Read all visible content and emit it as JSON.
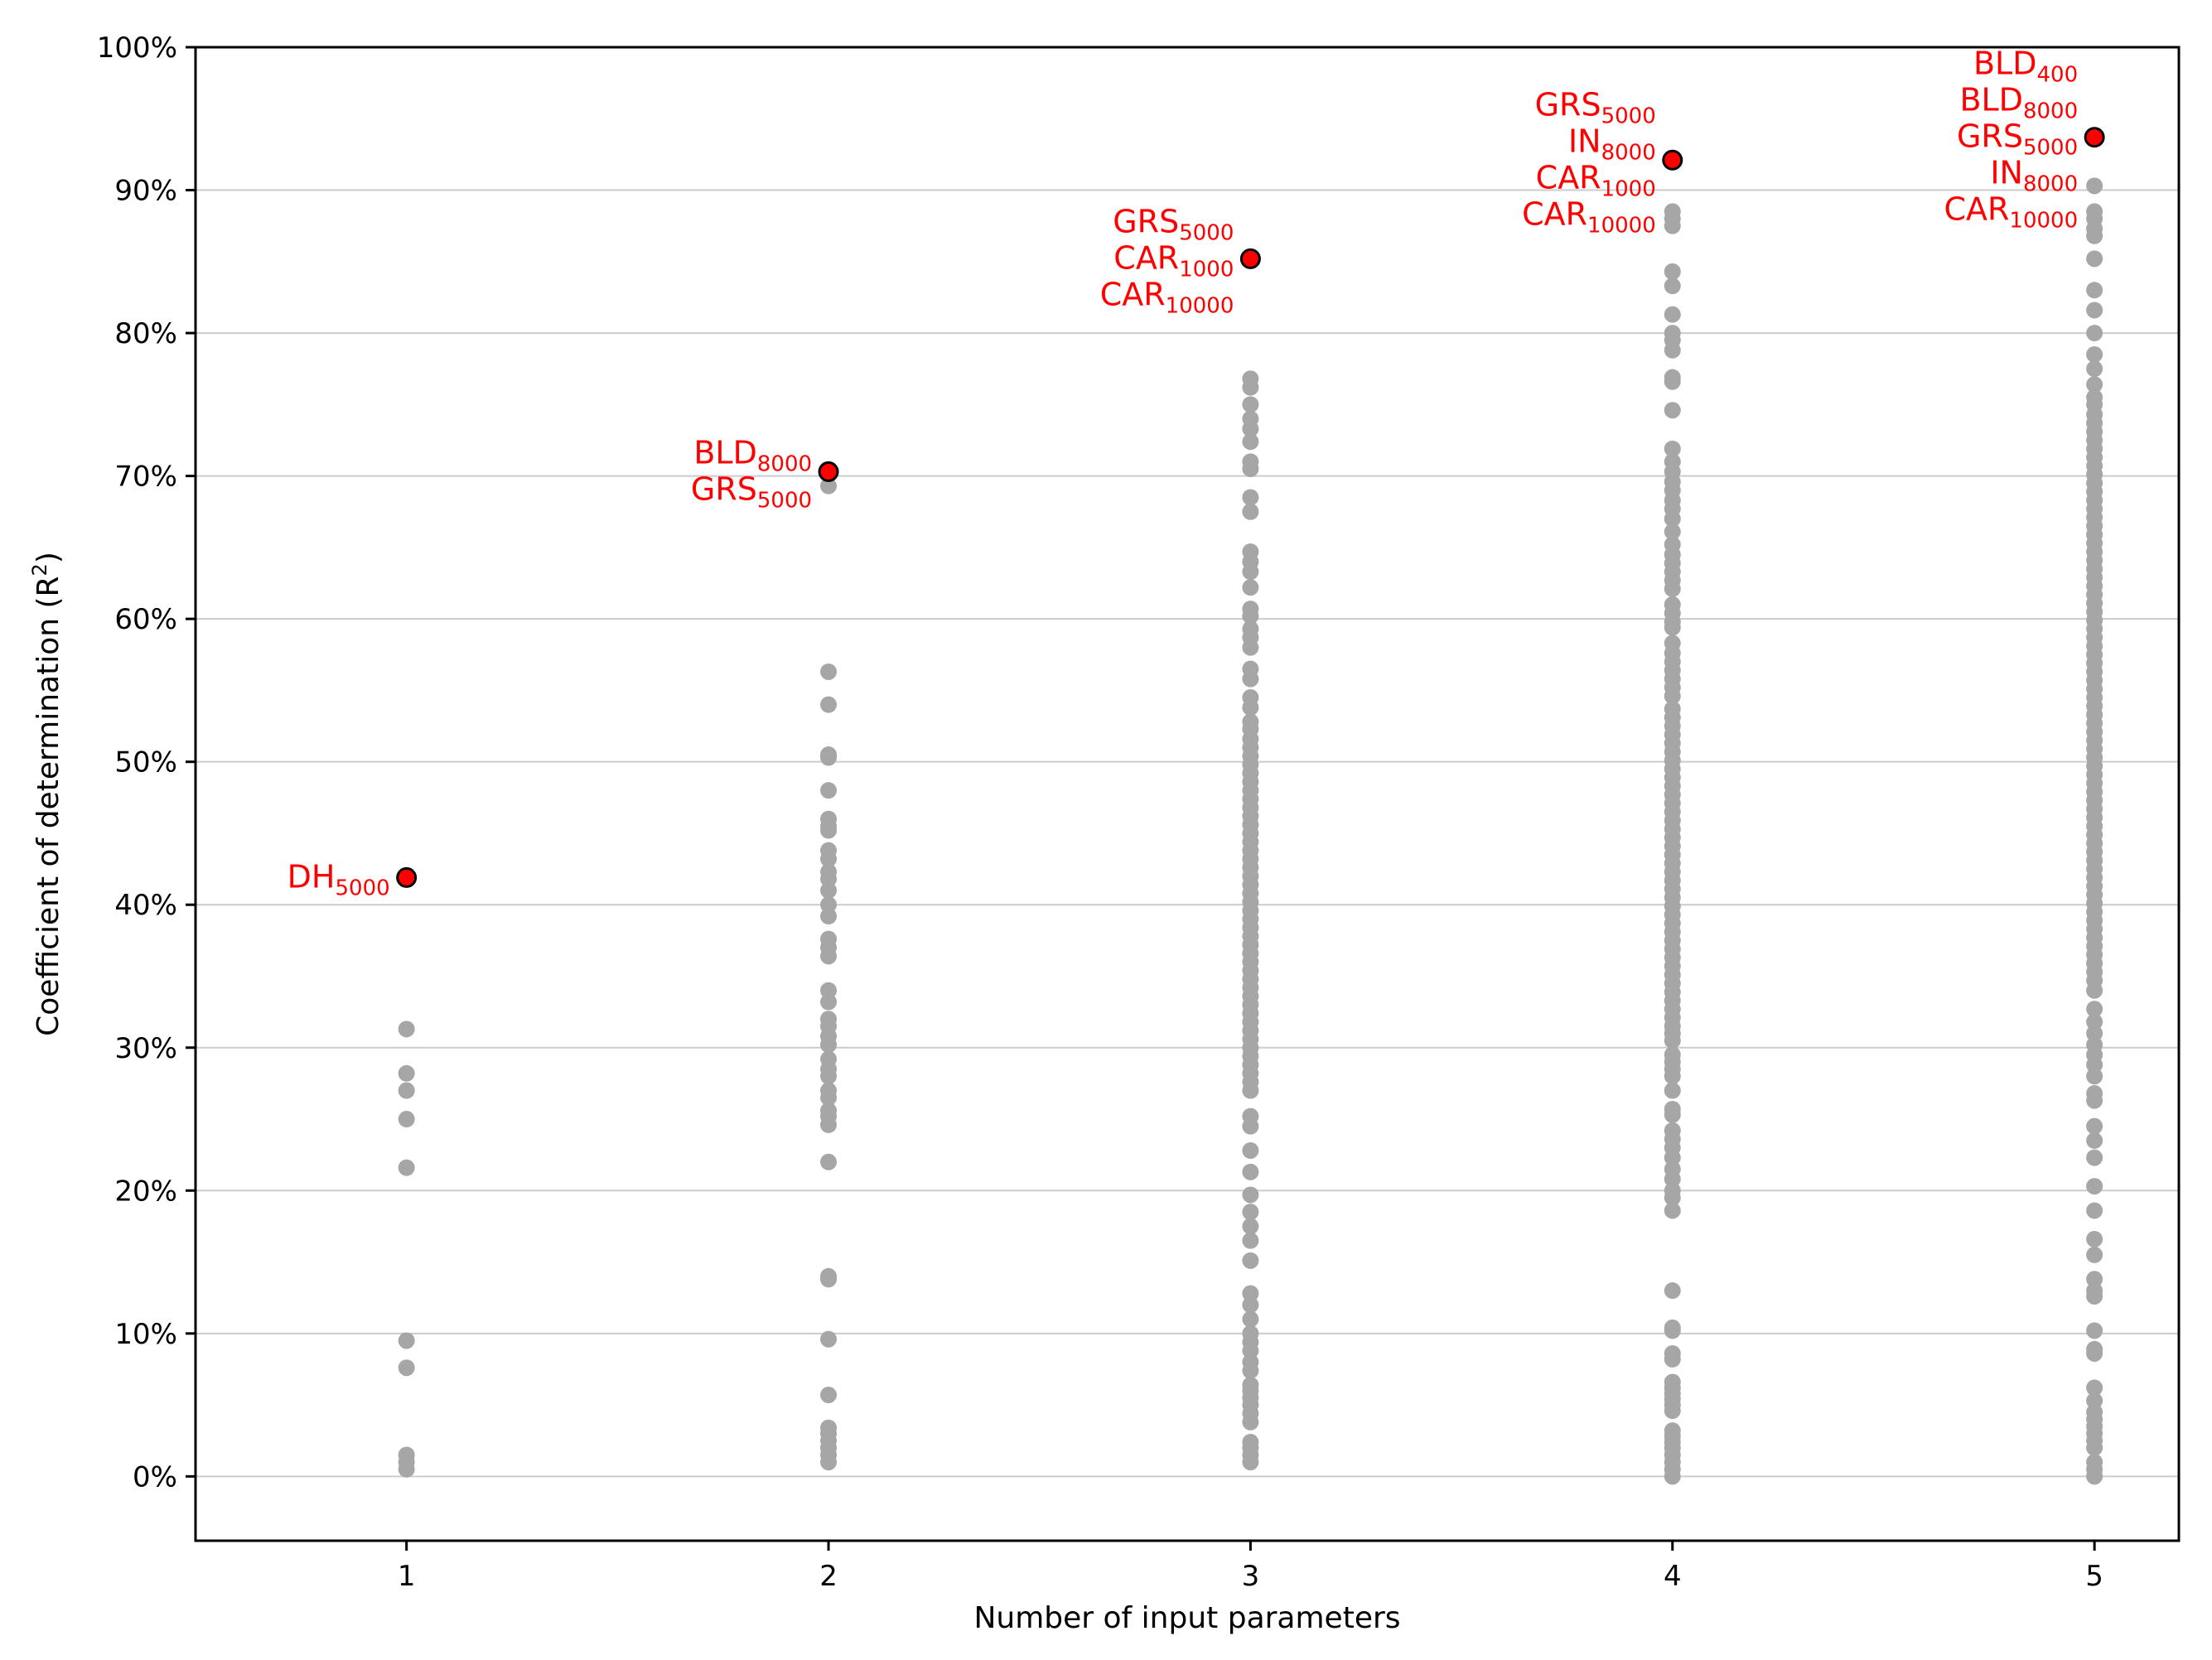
{
  "chart_data": {
    "type": "scatter",
    "xlabel": "Number of input parameters",
    "ylabel": "Coefficient of determination (R",
    "ylabel_sup": "2",
    "ylabel_end": ")",
    "xlim": [
      0.5,
      5.2
    ],
    "ylim": [
      -4.5,
      100
    ],
    "grid": "horizontal",
    "x_ticks": [
      {
        "value": 1,
        "label": "1"
      },
      {
        "value": 2,
        "label": "2"
      },
      {
        "value": 3,
        "label": "3"
      },
      {
        "value": 4,
        "label": "4"
      },
      {
        "value": 5,
        "label": "5"
      }
    ],
    "y_ticks": [
      {
        "value": 0,
        "label": "0%"
      },
      {
        "value": 10,
        "label": "10%"
      },
      {
        "value": 20,
        "label": "20%"
      },
      {
        "value": 30,
        "label": "30%"
      },
      {
        "value": 40,
        "label": "40%"
      },
      {
        "value": 50,
        "label": "50%"
      },
      {
        "value": 60,
        "label": "60%"
      },
      {
        "value": 70,
        "label": "70%"
      },
      {
        "value": 80,
        "label": "80%"
      },
      {
        "value": 90,
        "label": "90%"
      },
      {
        "value": 100,
        "label": "100%"
      }
    ],
    "series": [
      {
        "x": 1,
        "y": [
          31.3,
          28.2,
          27.0,
          25.0,
          21.6,
          9.5,
          7.6,
          1.5,
          1.0,
          0.5
        ]
      },
      {
        "x": 2,
        "y": [
          69.3,
          56.3,
          54.0,
          50.5,
          50.3,
          48.0,
          46.0,
          45.5,
          45.2,
          43.8,
          43.2,
          42.3,
          41.8,
          41.0,
          40.0,
          39.2,
          37.6,
          37.0,
          36.4,
          34.0,
          33.2,
          32.0,
          31.5,
          30.8,
          30.2,
          29.2,
          28.5,
          28.0,
          27.0,
          26.5,
          25.6,
          25.2,
          24.6,
          22.0,
          14.0,
          13.8,
          9.6,
          5.7,
          3.4,
          3.0,
          2.5,
          2.0,
          1.5,
          1.0
        ]
      },
      {
        "x": 3,
        "y": [
          76.8,
          76.2,
          75.0,
          74.0,
          73.3,
          72.4,
          71.0,
          70.5,
          68.5,
          67.5,
          64.7,
          64.0,
          63.3,
          62.2,
          60.7,
          60.2,
          59.3,
          58.7,
          58.0,
          56.5,
          55.8,
          54.5,
          53.8,
          52.8,
          52.3,
          51.6,
          51.0,
          50.4,
          49.8,
          49.2,
          48.6,
          48.0,
          47.4,
          46.8,
          46.2,
          45.6,
          45.0,
          44.4,
          43.8,
          43.2,
          42.6,
          42.0,
          41.4,
          40.8,
          40.2,
          39.6,
          39.0,
          38.4,
          37.8,
          37.2,
          36.6,
          36.0,
          35.4,
          34.8,
          34.2,
          33.6,
          33.0,
          32.4,
          31.8,
          31.2,
          30.6,
          30.0,
          29.4,
          28.8,
          28.2,
          27.6,
          27.0,
          25.2,
          24.5,
          22.8,
          21.3,
          19.7,
          18.5,
          17.5,
          16.5,
          15.1,
          12.8,
          12.0,
          11.0,
          10.0,
          9.4,
          8.8,
          8.0,
          7.4,
          6.4,
          6.0,
          5.5,
          5.0,
          4.4,
          3.8,
          2.4,
          2.0,
          1.5,
          1.0
        ]
      },
      {
        "x": 4,
        "y": [
          88.5,
          88.0,
          87.5,
          84.3,
          83.3,
          81.3,
          80.0,
          79.5,
          78.8,
          76.9,
          76.6,
          74.6,
          71.9,
          71.0,
          70.3,
          69.6,
          69.0,
          68.3,
          67.7,
          67.0,
          66.1,
          65.2,
          64.5,
          63.9,
          63.3,
          62.7,
          62.1,
          61.0,
          60.4,
          59.8,
          59.4,
          58.3,
          57.6,
          57.0,
          56.4,
          55.8,
          55.2,
          54.6,
          53.7,
          53.1,
          52.5,
          51.9,
          51.3,
          50.7,
          50.1,
          49.5,
          48.9,
          48.3,
          47.7,
          47.1,
          46.5,
          45.9,
          45.3,
          44.7,
          44.1,
          43.5,
          42.9,
          42.3,
          41.7,
          41.1,
          40.5,
          39.9,
          39.3,
          38.7,
          38.1,
          37.5,
          36.9,
          36.3,
          35.7,
          35.1,
          34.5,
          33.9,
          33.3,
          32.7,
          32.1,
          31.5,
          31.0,
          30.5,
          29.5,
          29.0,
          28.5,
          28.0,
          27.0,
          25.7,
          25.3,
          24.2,
          23.6,
          23.0,
          22.3,
          21.5,
          20.8,
          20.0,
          19.5,
          18.6,
          13.0,
          10.4,
          10.2,
          8.6,
          8.2,
          6.6,
          6.2,
          5.8,
          5.4,
          5.0,
          4.6,
          3.2,
          2.8,
          2.4,
          2.0,
          1.5,
          1.0,
          0.5,
          0.0
        ]
      },
      {
        "x": 5,
        "y": [
          90.3,
          88.5,
          88.0,
          87.3,
          86.8,
          85.2,
          83.0,
          81.6,
          80.0,
          78.5,
          77.5,
          76.4,
          75.5,
          75.0,
          74.3,
          73.7,
          73.1,
          72.5,
          71.9,
          71.3,
          70.7,
          70.1,
          69.5,
          68.9,
          68.3,
          67.7,
          67.1,
          66.5,
          65.9,
          65.3,
          64.7,
          64.1,
          63.5,
          62.9,
          62.3,
          61.7,
          61.1,
          60.5,
          59.9,
          59.3,
          58.7,
          58.1,
          57.5,
          56.9,
          56.3,
          55.7,
          55.1,
          54.5,
          53.9,
          53.3,
          52.7,
          52.1,
          51.5,
          50.9,
          50.3,
          49.7,
          49.1,
          48.5,
          47.9,
          47.3,
          46.7,
          46.1,
          45.5,
          44.9,
          44.3,
          43.7,
          43.1,
          42.5,
          41.9,
          41.3,
          40.7,
          40.1,
          39.5,
          38.9,
          38.3,
          37.7,
          37.1,
          36.5,
          35.9,
          35.3,
          34.7,
          34.0,
          32.7,
          31.8,
          31.0,
          30.2,
          29.5,
          28.8,
          28.0,
          26.8,
          26.3,
          24.5,
          23.5,
          22.3,
          20.3,
          18.6,
          16.6,
          15.5,
          13.8,
          13.0,
          12.6,
          10.2,
          8.9,
          8.6,
          6.2,
          5.3,
          4.5,
          4.0,
          3.5,
          3.0,
          2.5,
          2.0,
          1.0,
          0.5,
          0.0
        ]
      }
    ],
    "best": [
      {
        "x": 1,
        "y": 41.9,
        "labels": [
          {
            "base": "DH",
            "sub": "5000"
          }
        ]
      },
      {
        "x": 2,
        "y": 70.3,
        "labels": [
          {
            "base": "BLD",
            "sub": "8000"
          },
          {
            "base": "GRS",
            "sub": "5000"
          }
        ]
      },
      {
        "x": 3,
        "y": 85.2,
        "labels": [
          {
            "base": "GRS",
            "sub": "5000"
          },
          {
            "base": "CAR",
            "sub": "1000"
          },
          {
            "base": "CAR",
            "sub": "10000"
          }
        ]
      },
      {
        "x": 4,
        "y": 92.1,
        "labels": [
          {
            "base": "GRS",
            "sub": "5000"
          },
          {
            "base": "IN",
            "sub": "8000"
          },
          {
            "base": "CAR",
            "sub": "1000"
          },
          {
            "base": "CAR",
            "sub": "10000"
          }
        ]
      },
      {
        "x": 5,
        "y": 93.7,
        "labels": [
          {
            "base": "BLD",
            "sub": "400"
          },
          {
            "base": "BLD",
            "sub": "8000"
          },
          {
            "base": "GRS",
            "sub": "5000"
          },
          {
            "base": "IN",
            "sub": "8000"
          },
          {
            "base": "CAR",
            "sub": "10000"
          }
        ]
      }
    ],
    "colors": {
      "points": "#a6a6a6",
      "best_fill": "#ff0000",
      "best_edge": "#000000",
      "annotation": "#ff0000",
      "grid": "#cccccc"
    }
  }
}
